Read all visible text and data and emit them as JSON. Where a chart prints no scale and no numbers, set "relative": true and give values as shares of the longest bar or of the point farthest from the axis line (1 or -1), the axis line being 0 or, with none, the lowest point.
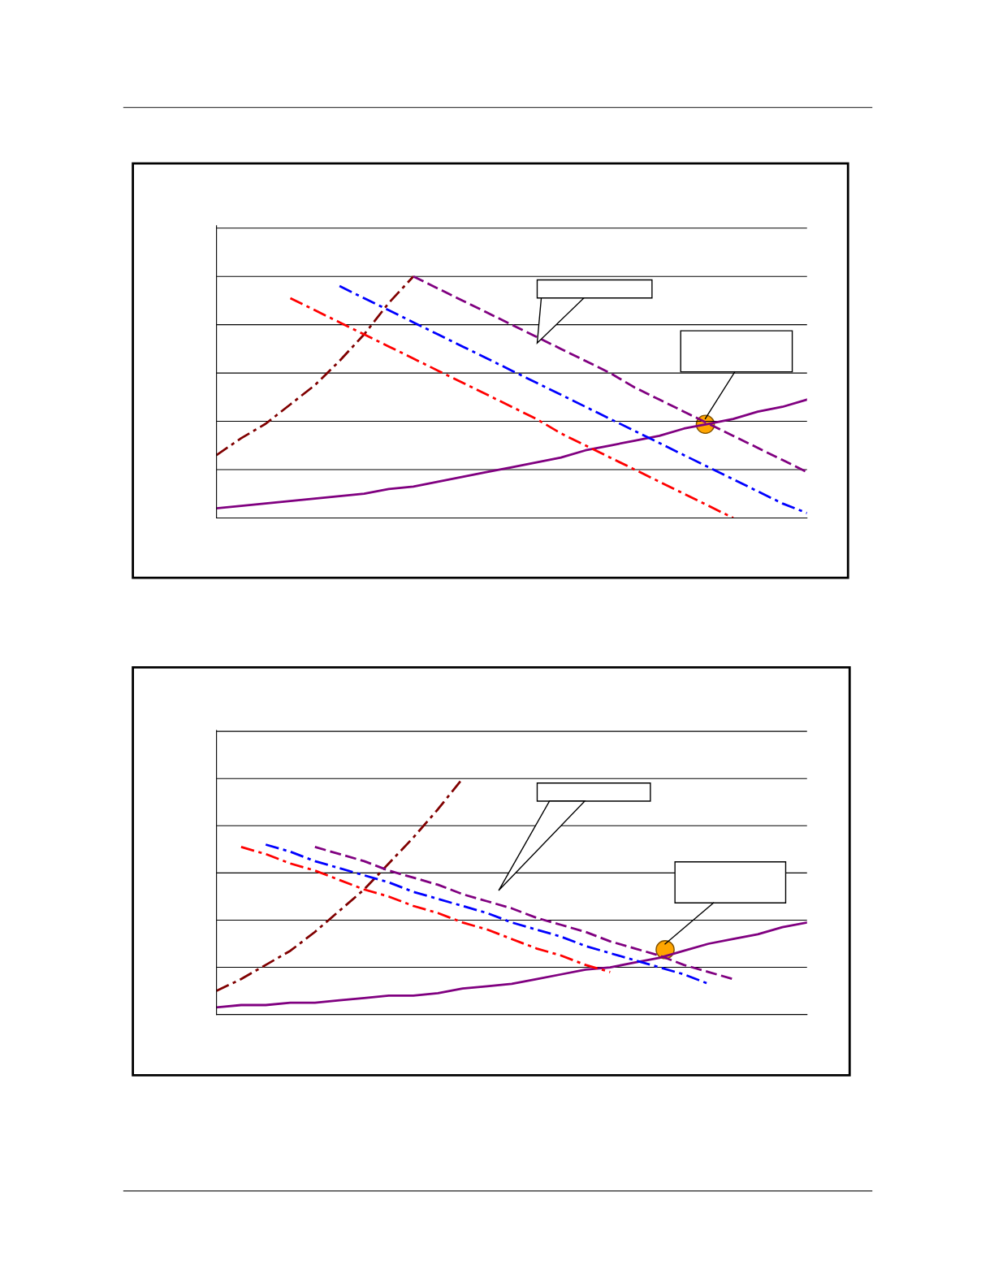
{
  "chart_data": [
    {
      "type": "line",
      "relative": true,
      "grid": "y",
      "categories": [
        null,
        null,
        null,
        null,
        null,
        null,
        null,
        null,
        null,
        null,
        null,
        null,
        null,
        null,
        null,
        null,
        null,
        null,
        null,
        null,
        null,
        null,
        null,
        null,
        null
      ],
      "series": [
        {
          "color": "#800080",
          "line_style": "solid",
          "values": [
            0.04,
            0.05,
            0.06,
            0.07,
            0.08,
            0.09,
            0.1,
            0.12,
            0.13,
            0.15,
            0.17,
            0.19,
            0.21,
            0.23,
            0.25,
            0.28,
            0.3,
            0.32,
            0.34,
            0.37,
            0.39,
            0.41,
            0.44,
            0.46,
            0.49
          ]
        },
        {
          "color": "#800000",
          "line_style": "dashdot",
          "values": [
            0.26,
            0.33,
            0.39,
            0.47,
            0.55,
            0.65,
            0.76,
            0.89,
            1.0,
            null,
            null,
            null,
            null,
            null,
            null,
            null,
            null,
            null,
            null,
            null,
            null,
            null,
            null,
            null,
            null
          ]
        },
        {
          "color": "#800080",
          "line_style": "dashed",
          "values": [
            null,
            null,
            null,
            null,
            null,
            null,
            null,
            null,
            1.0,
            0.95,
            0.9,
            0.85,
            0.8,
            0.75,
            0.7,
            0.65,
            0.6,
            0.54,
            0.49,
            0.44,
            0.39,
            0.34,
            0.29,
            0.24,
            0.19
          ]
        },
        {
          "color": "#0000ff",
          "line_style": "dashdot",
          "values": [
            null,
            null,
            null,
            null,
            null,
            0.96,
            0.91,
            0.86,
            0.81,
            0.76,
            0.71,
            0.66,
            0.61,
            0.56,
            0.51,
            0.46,
            0.41,
            0.36,
            0.31,
            0.26,
            0.21,
            0.16,
            0.11,
            0.06,
            0.02
          ]
        },
        {
          "color": "#ff0000",
          "line_style": "dashdot",
          "values": [
            null,
            null,
            null,
            0.91,
            0.86,
            0.81,
            0.76,
            0.71,
            0.66,
            0.61,
            0.56,
            0.51,
            0.46,
            0.41,
            0.35,
            0.3,
            0.25,
            0.2,
            0.15,
            0.1,
            0.05,
            0.0,
            null,
            null,
            null
          ]
        }
      ]
    },
    {
      "type": "line",
      "relative": true,
      "grid": "y",
      "categories": [
        null,
        null,
        null,
        null,
        null,
        null,
        null,
        null,
        null,
        null,
        null,
        null,
        null,
        null,
        null,
        null,
        null,
        null,
        null,
        null,
        null,
        null,
        null,
        null,
        null
      ],
      "series": [
        {
          "color": "#800080",
          "line_style": "solid",
          "values": [
            0.03,
            0.04,
            0.04,
            0.05,
            0.05,
            0.06,
            0.07,
            0.08,
            0.08,
            0.09,
            0.11,
            0.12,
            0.13,
            0.15,
            0.17,
            0.19,
            0.2,
            0.22,
            0.24,
            0.27,
            0.3,
            0.32,
            0.34,
            0.37,
            0.39
          ]
        },
        {
          "color": "#800000",
          "line_style": "dashdot",
          "values": [
            0.1,
            0.15,
            0.21,
            0.27,
            0.35,
            0.44,
            0.53,
            0.64,
            0.75,
            0.87,
            1.0,
            null,
            null,
            null,
            null,
            null,
            null,
            null,
            null,
            null,
            null,
            null,
            null,
            null,
            null
          ]
        },
        {
          "color": "#800080",
          "line_style": "dashed",
          "values": [
            null,
            null,
            null,
            null,
            0.71,
            0.68,
            0.65,
            0.61,
            0.58,
            0.55,
            0.51,
            0.48,
            0.45,
            0.41,
            0.38,
            0.35,
            0.31,
            0.28,
            0.25,
            0.21,
            0.18,
            0.15,
            null,
            null,
            null
          ]
        },
        {
          "color": "#0000ff",
          "line_style": "dashdot",
          "values": [
            null,
            null,
            0.72,
            0.69,
            0.65,
            0.62,
            0.59,
            0.56,
            0.52,
            0.49,
            0.46,
            0.43,
            0.39,
            0.36,
            0.33,
            0.29,
            0.26,
            0.23,
            0.2,
            0.17,
            0.13,
            null,
            null,
            null,
            null
          ]
        },
        {
          "color": "#ff0000",
          "line_style": "dashdot",
          "values": [
            null,
            0.71,
            0.68,
            0.64,
            0.61,
            0.57,
            0.53,
            0.5,
            0.46,
            0.43,
            0.39,
            0.36,
            0.32,
            0.28,
            0.25,
            0.21,
            0.18,
            null,
            null,
            null,
            null,
            null,
            null,
            null,
            null
          ]
        }
      ]
    }
  ]
}
